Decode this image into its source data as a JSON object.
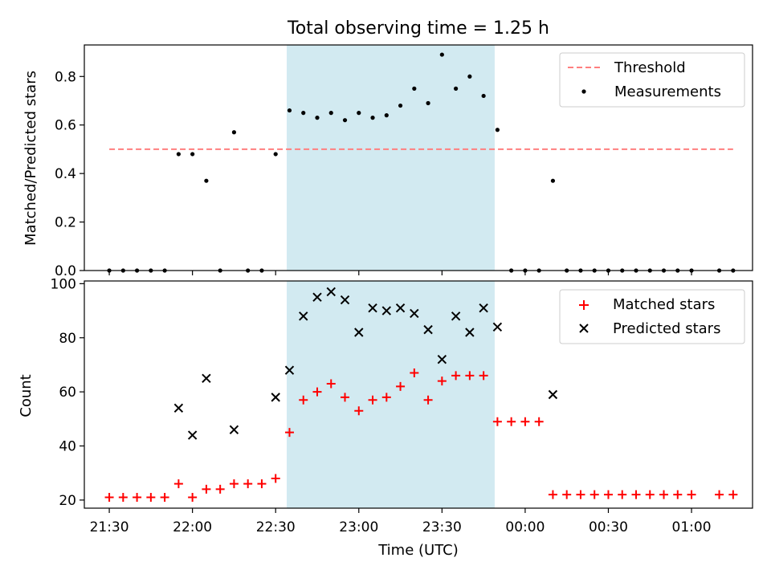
{
  "chart_data": [
    {
      "type": "scatter",
      "title": "Total observing time = 1.25 h",
      "xlabel": "",
      "ylabel": "Matched/Predicted stars",
      "ylim": [
        0,
        0.93
      ],
      "yticks": [
        0.0,
        0.2,
        0.4,
        0.6,
        0.8
      ],
      "ytick_labels": [
        "0.0",
        "0.2",
        "0.4",
        "0.6",
        "0.8"
      ],
      "shaded_interval": [
        "22:34",
        "23:49"
      ],
      "shade_color": "#add8e6",
      "legend": {
        "position": "top-right",
        "entries": [
          {
            "label": "Threshold",
            "style": "dashed-line",
            "color": "#ff7f7f"
          },
          {
            "label": "Measurements",
            "style": "dot",
            "color": "#000000"
          }
        ]
      },
      "series": [
        {
          "name": "Threshold",
          "kind": "hline",
          "color": "#ff7f7f",
          "y": 0.5,
          "x_range": [
            "21:30",
            "01:15"
          ]
        },
        {
          "name": "Measurements",
          "kind": "scatter",
          "marker": "dot",
          "color": "#000000",
          "points": [
            [
              "21:30",
              0.0
            ],
            [
              "21:35",
              0.0
            ],
            [
              "21:40",
              0.0
            ],
            [
              "21:45",
              0.0
            ],
            [
              "21:50",
              0.0
            ],
            [
              "21:55",
              0.48
            ],
            [
              "22:00",
              0.48
            ],
            [
              "22:05",
              0.37
            ],
            [
              "22:10",
              0.0
            ],
            [
              "22:15",
              0.57
            ],
            [
              "22:20",
              0.0
            ],
            [
              "22:25",
              0.0
            ],
            [
              "22:30",
              0.48
            ],
            [
              "22:35",
              0.66
            ],
            [
              "22:40",
              0.65
            ],
            [
              "22:45",
              0.63
            ],
            [
              "22:50",
              0.65
            ],
            [
              "22:55",
              0.62
            ],
            [
              "23:00",
              0.65
            ],
            [
              "23:05",
              0.63
            ],
            [
              "23:10",
              0.64
            ],
            [
              "23:15",
              0.68
            ],
            [
              "23:20",
              0.75
            ],
            [
              "23:25",
              0.69
            ],
            [
              "23:30",
              0.89
            ],
            [
              "23:35",
              0.75
            ],
            [
              "23:40",
              0.8
            ],
            [
              "23:45",
              0.72
            ],
            [
              "23:50",
              0.58
            ],
            [
              "23:55",
              0.0
            ],
            [
              "00:00",
              0.0
            ],
            [
              "00:05",
              0.0
            ],
            [
              "00:10",
              0.37
            ],
            [
              "00:15",
              0.0
            ],
            [
              "00:20",
              0.0
            ],
            [
              "00:25",
              0.0
            ],
            [
              "00:30",
              0.0
            ],
            [
              "00:35",
              0.0
            ],
            [
              "00:40",
              0.0
            ],
            [
              "00:45",
              0.0
            ],
            [
              "00:50",
              0.0
            ],
            [
              "00:55",
              0.0
            ],
            [
              "01:00",
              0.0
            ],
            [
              "01:10",
              0.0
            ],
            [
              "01:15",
              0.0
            ]
          ]
        }
      ]
    },
    {
      "type": "scatter",
      "title": "",
      "xlabel": "Time (UTC)",
      "ylabel": "Count",
      "ylim": [
        17,
        101
      ],
      "yticks": [
        20,
        40,
        60,
        80,
        100
      ],
      "ytick_labels": [
        "20",
        "40",
        "60",
        "80",
        "100"
      ],
      "xlim": [
        "21:21",
        "01:22"
      ],
      "xticks": [
        "21:30",
        "22:00",
        "22:30",
        "23:00",
        "23:30",
        "00:00",
        "00:30",
        "01:00"
      ],
      "xtick_labels": [
        "21:30",
        "22:00",
        "22:30",
        "23:00",
        "23:30",
        "00:00",
        "00:30",
        "01:00"
      ],
      "shaded_interval": [
        "22:34",
        "23:49"
      ],
      "shade_color": "#add8e6",
      "legend": {
        "position": "top-right",
        "entries": [
          {
            "label": "Matched stars",
            "style": "plus",
            "color": "#ff0000"
          },
          {
            "label": "Predicted stars",
            "style": "cross",
            "color": "#000000"
          }
        ]
      },
      "series": [
        {
          "name": "Matched stars",
          "kind": "scatter",
          "marker": "plus",
          "color": "#ff0000",
          "points": [
            [
              "21:30",
              21
            ],
            [
              "21:35",
              21
            ],
            [
              "21:40",
              21
            ],
            [
              "21:45",
              21
            ],
            [
              "21:50",
              21
            ],
            [
              "21:55",
              26
            ],
            [
              "22:00",
              21
            ],
            [
              "22:05",
              24
            ],
            [
              "22:10",
              24
            ],
            [
              "22:15",
              26
            ],
            [
              "22:20",
              26
            ],
            [
              "22:25",
              26
            ],
            [
              "22:30",
              28
            ],
            [
              "22:35",
              45
            ],
            [
              "22:40",
              57
            ],
            [
              "22:45",
              60
            ],
            [
              "22:50",
              63
            ],
            [
              "22:55",
              58
            ],
            [
              "23:00",
              53
            ],
            [
              "23:05",
              57
            ],
            [
              "23:10",
              58
            ],
            [
              "23:15",
              62
            ],
            [
              "23:20",
              67
            ],
            [
              "23:25",
              57
            ],
            [
              "23:30",
              64
            ],
            [
              "23:35",
              66
            ],
            [
              "23:40",
              66
            ],
            [
              "23:45",
              66
            ],
            [
              "23:50",
              49
            ],
            [
              "23:55",
              49
            ],
            [
              "00:00",
              49
            ],
            [
              "00:05",
              49
            ],
            [
              "00:10",
              22
            ],
            [
              "00:15",
              22
            ],
            [
              "00:20",
              22
            ],
            [
              "00:25",
              22
            ],
            [
              "00:30",
              22
            ],
            [
              "00:35",
              22
            ],
            [
              "00:40",
              22
            ],
            [
              "00:45",
              22
            ],
            [
              "00:50",
              22
            ],
            [
              "00:55",
              22
            ],
            [
              "01:00",
              22
            ],
            [
              "01:10",
              22
            ],
            [
              "01:15",
              22
            ]
          ]
        },
        {
          "name": "Predicted stars",
          "kind": "scatter",
          "marker": "cross",
          "color": "#000000",
          "points": [
            [
              "21:55",
              54
            ],
            [
              "22:00",
              44
            ],
            [
              "22:05",
              65
            ],
            [
              "22:15",
              46
            ],
            [
              "22:30",
              58
            ],
            [
              "22:35",
              68
            ],
            [
              "22:40",
              88
            ],
            [
              "22:45",
              95
            ],
            [
              "22:50",
              97
            ],
            [
              "22:55",
              94
            ],
            [
              "23:00",
              82
            ],
            [
              "23:05",
              91
            ],
            [
              "23:10",
              90
            ],
            [
              "23:15",
              91
            ],
            [
              "23:20",
              89
            ],
            [
              "23:25",
              83
            ],
            [
              "23:30",
              72
            ],
            [
              "23:35",
              88
            ],
            [
              "23:40",
              82
            ],
            [
              "23:45",
              91
            ],
            [
              "23:50",
              84
            ],
            [
              "00:10",
              59
            ]
          ]
        }
      ]
    }
  ]
}
